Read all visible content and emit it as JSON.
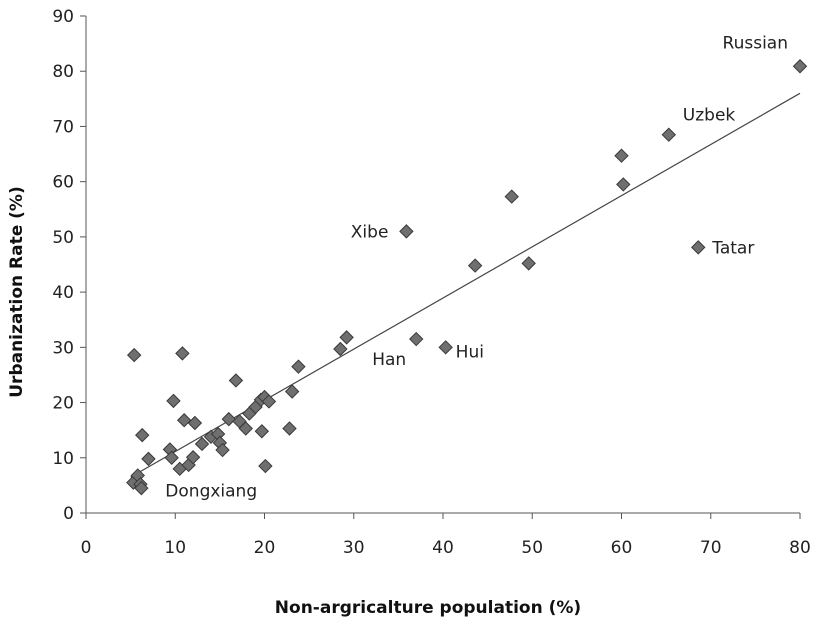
{
  "chart_data": {
    "type": "scatter",
    "title": "",
    "xlabel": "Non-argricalture population (%)",
    "ylabel": "Urbanization Rate (%)",
    "xlim": [
      0,
      80
    ],
    "ylim": [
      0,
      90
    ],
    "xticks": [
      "0",
      "10",
      "20",
      "30",
      "40",
      "50",
      "60",
      "70",
      "80"
    ],
    "yticks": [
      "0",
      "10",
      "20",
      "30",
      "40",
      "50",
      "60",
      "70",
      "80",
      "90"
    ],
    "grid": false,
    "legend": "none",
    "marker": "diamond",
    "marker_color": "#6f6f6f",
    "trendline": {
      "type": "linear",
      "from": [
        5,
        6.5
      ],
      "to": [
        80,
        76
      ]
    },
    "points": [
      {
        "x": 5.3,
        "y": 5.5
      },
      {
        "x": 5.8,
        "y": 6.8
      },
      {
        "x": 6.1,
        "y": 5.2
      },
      {
        "x": 6.2,
        "y": 4.5
      },
      {
        "x": 5.4,
        "y": 28.6
      },
      {
        "x": 6.3,
        "y": 14.1
      },
      {
        "x": 7.0,
        "y": 9.8
      },
      {
        "x": 9.4,
        "y": 11.5
      },
      {
        "x": 9.6,
        "y": 10.0
      },
      {
        "x": 9.8,
        "y": 20.3
      },
      {
        "x": 10.5,
        "y": 8.0
      },
      {
        "x": 11.0,
        "y": 16.8
      },
      {
        "x": 10.8,
        "y": 28.9
      },
      {
        "x": 11.5,
        "y": 8.7
      },
      {
        "x": 12.0,
        "y": 10.1
      },
      {
        "x": 12.2,
        "y": 16.3
      },
      {
        "x": 13.0,
        "y": 12.5
      },
      {
        "x": 14.0,
        "y": 13.8
      },
      {
        "x": 14.8,
        "y": 14.3
      },
      {
        "x": 15.0,
        "y": 12.7
      },
      {
        "x": 15.3,
        "y": 11.4
      },
      {
        "x": 16.0,
        "y": 17.0
      },
      {
        "x": 16.8,
        "y": 24.0
      },
      {
        "x": 17.2,
        "y": 16.6
      },
      {
        "x": 17.9,
        "y": 15.3
      },
      {
        "x": 18.3,
        "y": 18.0
      },
      {
        "x": 19.0,
        "y": 19.2
      },
      {
        "x": 19.6,
        "y": 20.5
      },
      {
        "x": 19.7,
        "y": 14.8
      },
      {
        "x": 20.0,
        "y": 21.0
      },
      {
        "x": 20.5,
        "y": 20.2
      },
      {
        "x": 20.1,
        "y": 8.5
      },
      {
        "x": 22.8,
        "y": 15.3
      },
      {
        "x": 23.1,
        "y": 22.0
      },
      {
        "x": 23.8,
        "y": 26.5
      },
      {
        "x": 28.5,
        "y": 29.7
      },
      {
        "x": 29.2,
        "y": 31.8
      },
      {
        "x": 35.9,
        "y": 51.0
      },
      {
        "x": 37.0,
        "y": 31.5
      },
      {
        "x": 40.3,
        "y": 30.0
      },
      {
        "x": 43.6,
        "y": 44.8
      },
      {
        "x": 47.7,
        "y": 57.3
      },
      {
        "x": 49.6,
        "y": 45.2
      },
      {
        "x": 60.0,
        "y": 64.7
      },
      {
        "x": 60.2,
        "y": 59.5
      },
      {
        "x": 65.3,
        "y": 68.5
      },
      {
        "x": 68.6,
        "y": 48.1
      },
      {
        "x": 80.0,
        "y": 80.9
      }
    ],
    "annotations": [
      {
        "text": "Russian",
        "x": 80.0,
        "y": 80.9
      },
      {
        "text": "Uzbek",
        "x": 65.3,
        "y": 68.5
      },
      {
        "text": "Xibe",
        "x": 35.9,
        "y": 51.0
      },
      {
        "text": "Tatar",
        "x": 68.6,
        "y": 48.1
      },
      {
        "text": "Han",
        "x": 37.0,
        "y": 31.5
      },
      {
        "text": "Hui",
        "x": 40.3,
        "y": 30.0
      },
      {
        "text": "Dongxiang",
        "x": 5.3,
        "y": 5.5
      }
    ]
  }
}
